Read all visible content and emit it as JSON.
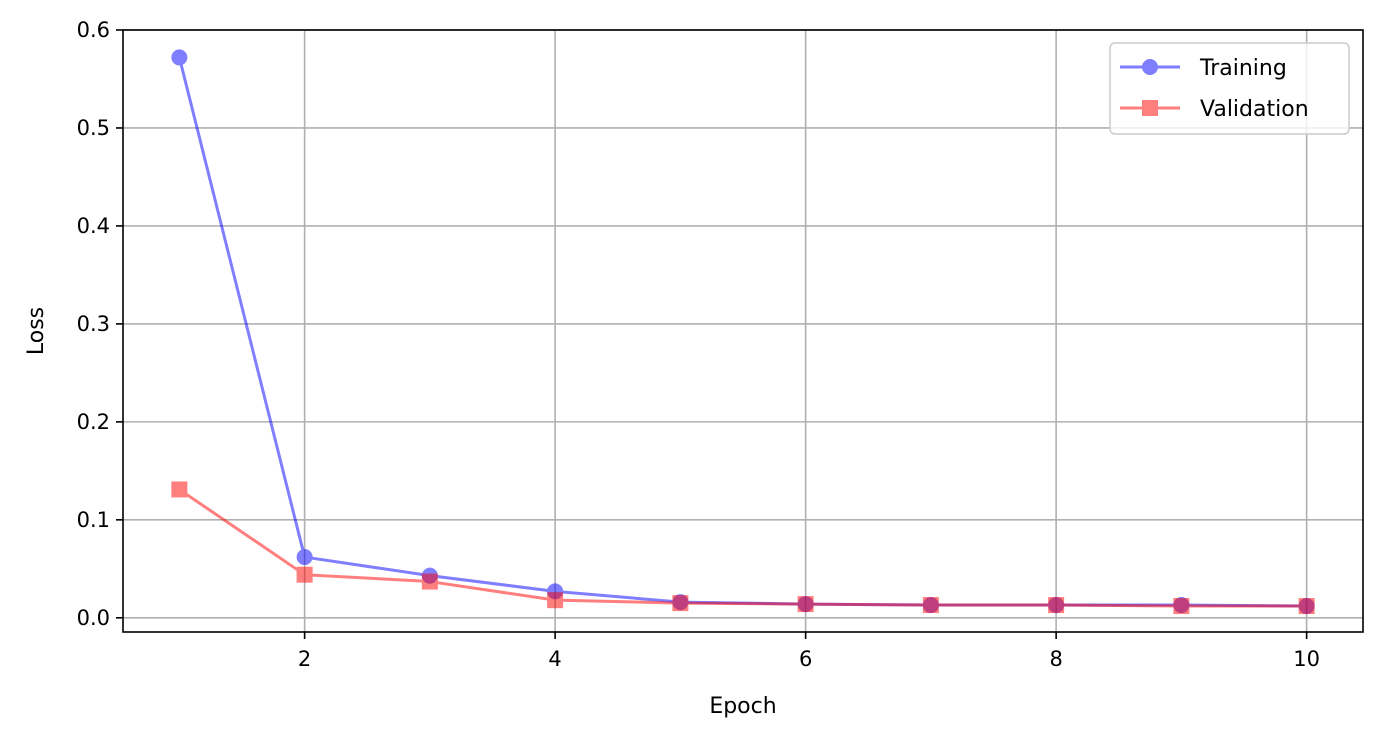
{
  "chart_data": {
    "type": "line",
    "x": [
      1,
      2,
      3,
      4,
      5,
      6,
      7,
      8,
      9,
      10
    ],
    "series": [
      {
        "name": "Training",
        "values": [
          0.572,
          0.062,
          0.043,
          0.027,
          0.016,
          0.014,
          0.013,
          0.013,
          0.013,
          0.012
        ],
        "color": "#0000ff",
        "marker": "circle"
      },
      {
        "name": "Validation",
        "values": [
          0.131,
          0.044,
          0.037,
          0.018,
          0.015,
          0.014,
          0.013,
          0.013,
          0.012,
          0.012
        ],
        "color": "#ff0000",
        "marker": "square"
      }
    ],
    "xlabel": "Epoch",
    "ylabel": "Loss",
    "xlim": [
      0.55,
      10.45
    ],
    "ylim": [
      -0.0145,
      0.6
    ],
    "xticks": [
      "2",
      "4",
      "6",
      "8",
      "10"
    ],
    "yticks": [
      "0.0",
      "0.1",
      "0.2",
      "0.3",
      "0.4",
      "0.5",
      "0.6"
    ],
    "grid": true,
    "legend_position": "top-right"
  }
}
